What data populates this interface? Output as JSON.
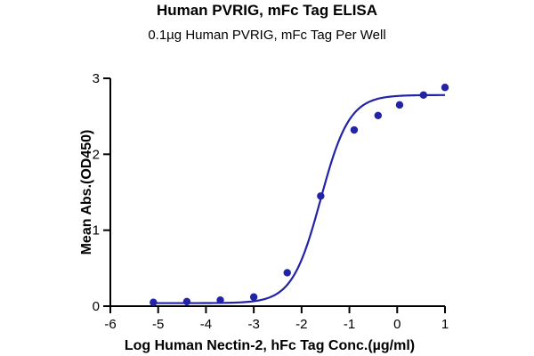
{
  "chart_data": {
    "type": "scatter",
    "title": "Human PVRIG, mFc Tag ELISA",
    "subtitle": "0.1µg Human PVRIG, mFc Tag Per Well",
    "xlabel": "Log Human Nectin-2, hFc Tag Conc.(µg/ml)",
    "ylabel": "Mean Abs.(OD450)",
    "xlim": [
      -6,
      1
    ],
    "ylim": [
      0,
      3
    ],
    "x_ticks": [
      "-6",
      "-5",
      "-4",
      "-3",
      "-2",
      "-1",
      "0",
      "1"
    ],
    "y_ticks": [
      "0",
      "1",
      "2",
      "3"
    ],
    "grid": false,
    "points": {
      "x": [
        -5.1,
        -4.4,
        -3.7,
        -3.0,
        -2.3,
        -1.6,
        -0.9,
        -0.4,
        0.05,
        0.55,
        1.0
      ],
      "y": [
        0.05,
        0.06,
        0.08,
        0.12,
        0.44,
        1.45,
        2.32,
        2.51,
        2.65,
        2.78,
        2.88
      ]
    },
    "fit_curve": {
      "model": "4PL",
      "bottom": 0.04,
      "top": 2.78,
      "logEC50": -1.6,
      "hill": 1.45
    },
    "colors": {
      "points": "#2323a8",
      "curve": "#2323a8",
      "axes": "#000000"
    }
  }
}
